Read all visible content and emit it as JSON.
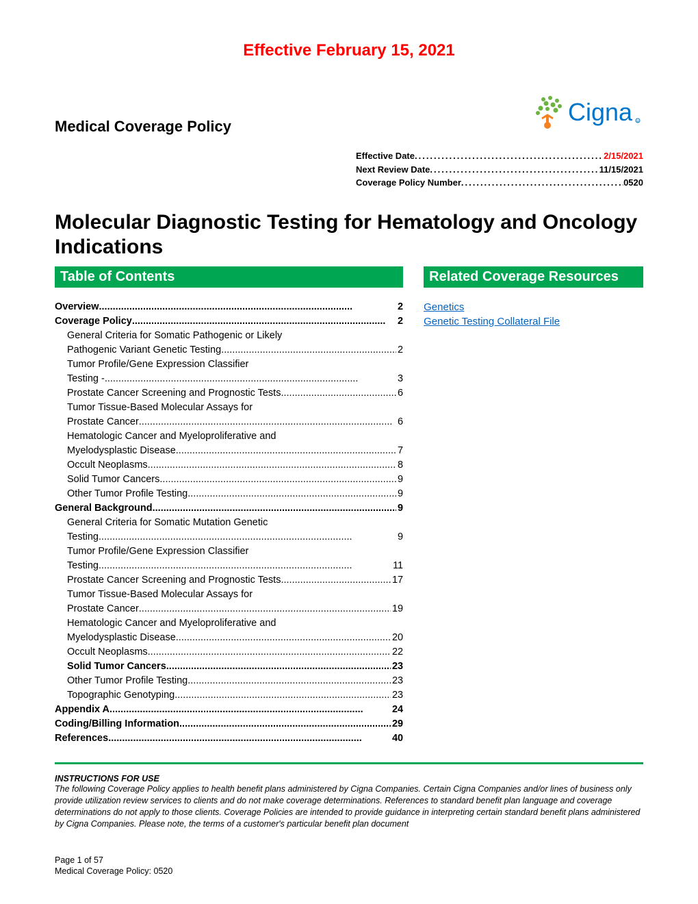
{
  "colors": {
    "accent_green": "#00a651",
    "red": "#ff0000",
    "link_blue": "#0563c1",
    "text": "#000000",
    "background": "#ffffff"
  },
  "typography": {
    "base_family": "Arial",
    "banner_size_pt": 18,
    "main_title_size_pt": 22,
    "section_bar_size_pt": 15,
    "body_size_pt": 11,
    "footer_size_pt": 9
  },
  "banner": "Effective February 15, 2021",
  "policy_heading": "Medical Coverage Policy",
  "logo_text": "Cigna",
  "meta": [
    {
      "label": "Effective Date",
      "value": "2/15/2021",
      "red": true
    },
    {
      "label": "Next Review Date ",
      "value": "11/15/2021",
      "red": false
    },
    {
      "label": "Coverage Policy Number",
      "value": "0520",
      "red": false
    }
  ],
  "main_title": "Molecular Diagnostic Testing for Hematology and Oncology Indications",
  "toc_header": "Table of Contents",
  "resources_header": "Related Coverage Resources",
  "toc": [
    {
      "label": "Overview",
      "page": "2",
      "bold": true,
      "sub": false
    },
    {
      "label": "Coverage Policy",
      "page": "2",
      "bold": true,
      "sub": false
    },
    {
      "label": "General Criteria for Somatic Pathogenic or Likely Pathogenic Variant Genetic Testing",
      "page": "2",
      "bold": false,
      "sub": true,
      "multi": true,
      "line1": "General Criteria for Somatic Pathogenic or Likely",
      "line2": "Pathogenic Variant Genetic Testing"
    },
    {
      "label": "Tumor Profile/Gene Expression Classifier Testing -",
      "page": "3",
      "bold": false,
      "sub": true,
      "multi": true,
      "line1": "Tumor Profile/Gene Expression Classifier",
      "line2": "Testing -"
    },
    {
      "label": "Prostate Cancer Screening and Prognostic Tests",
      "page": "6",
      "bold": false,
      "sub": true
    },
    {
      "label": "Tumor Tissue-Based Molecular Assays for Prostate Cancer",
      "page": "6",
      "bold": false,
      "sub": true,
      "multi": true,
      "line1": "Tumor Tissue-Based Molecular Assays for",
      "line2": "Prostate Cancer"
    },
    {
      "label": "Hematologic Cancer and Myeloproliferative and Myelodysplastic Disease",
      "page": "7",
      "bold": false,
      "sub": true,
      "multi": true,
      "line1": "Hematologic Cancer and Myeloproliferative and",
      "line2": "Myelodysplastic Disease"
    },
    {
      "label": "Occult Neoplasms",
      "page": "8",
      "bold": false,
      "sub": true
    },
    {
      "label": "Solid Tumor Cancers",
      "page": "9",
      "bold": false,
      "sub": true
    },
    {
      "label": "Other Tumor Profile Testing",
      "page": "9",
      "bold": false,
      "sub": true
    },
    {
      "label": "General Background",
      "page": "9",
      "bold": true,
      "sub": false
    },
    {
      "label": "General Criteria for Somatic Mutation Genetic Testing",
      "page": "9",
      "bold": false,
      "sub": true,
      "multi": true,
      "line1": "General Criteria for Somatic Mutation Genetic",
      "line2": "Testing"
    },
    {
      "label": "Tumor Profile/Gene Expression Classifier Testing",
      "page": "11",
      "bold": false,
      "sub": true,
      "multi": true,
      "line1": "Tumor Profile/Gene Expression Classifier",
      "line2": "Testing"
    },
    {
      "label": "Prostate Cancer Screening and Prognostic Tests",
      "page": "17",
      "bold": false,
      "sub": true
    },
    {
      "label": "Tumor Tissue-Based Molecular Assays for Prostate Cancer",
      "page": "19",
      "bold": false,
      "sub": true,
      "multi": true,
      "line1": "Tumor Tissue-Based Molecular Assays for",
      "line2": "Prostate Cancer"
    },
    {
      "label": "Hematologic Cancer and Myeloproliferative and Myelodysplastic Disease",
      "page": "20",
      "bold": false,
      "sub": true,
      "multi": true,
      "line1": "Hematologic Cancer and Myeloproliferative and",
      "line2": "Myelodysplastic Disease"
    },
    {
      "label": "Occult Neoplasms",
      "page": "22",
      "bold": false,
      "sub": true
    },
    {
      "label": "Solid Tumor Cancers",
      "page": "23",
      "bold": true,
      "sub": true
    },
    {
      "label": "Other Tumor Profile Testing",
      "page": "23",
      "bold": false,
      "sub": true
    },
    {
      "label": "Topographic Genotyping",
      "page": "23",
      "bold": false,
      "sub": true
    },
    {
      "label": "Appendix A",
      "page": "24",
      "bold": true,
      "sub": false
    },
    {
      "label": "Coding/Billing Information",
      "page": "29",
      "bold": true,
      "sub": false
    },
    {
      "label": "References",
      "page": "40",
      "bold": true,
      "sub": false
    }
  ],
  "resources": [
    "Genetics",
    "Genetic Testing Collateral File"
  ],
  "instructions_heading": "INSTRUCTIONS FOR USE",
  "instructions_body": "The following Coverage Policy applies to health benefit plans administered by Cigna Companies. Certain Cigna Companies and/or lines of business only provide utilization review services to clients and do not make coverage determinations. References to standard benefit plan language and coverage determinations do not apply to those clients. Coverage Policies are intended to provide guidance in interpreting certain standard benefit plans administered by Cigna Companies. Please note, the terms of a customer's particular benefit plan document",
  "footer": {
    "line1": "Page 1 of 57",
    "line2": "Medical Coverage Policy: 0520"
  }
}
